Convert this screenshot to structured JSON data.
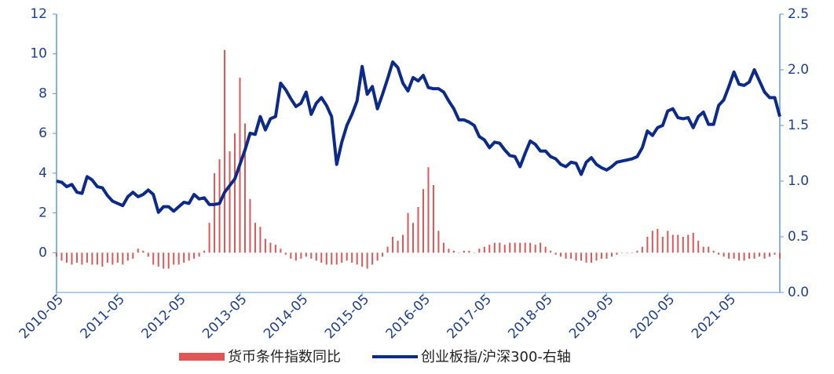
{
  "chart_data": {
    "type": "bar-line",
    "categories": [
      "2010-05",
      null,
      null,
      null,
      null,
      null,
      null,
      null,
      null,
      null,
      null,
      null,
      "2011-05",
      null,
      null,
      null,
      null,
      null,
      null,
      null,
      null,
      null,
      null,
      null,
      "2012-05",
      null,
      null,
      null,
      null,
      null,
      null,
      null,
      null,
      null,
      null,
      null,
      "2013-05",
      null,
      null,
      null,
      null,
      null,
      null,
      null,
      null,
      null,
      null,
      null,
      "2014-05",
      null,
      null,
      null,
      null,
      null,
      null,
      null,
      null,
      null,
      null,
      null,
      "2015-05",
      null,
      null,
      null,
      null,
      null,
      null,
      null,
      null,
      null,
      null,
      null,
      "2016-05",
      null,
      null,
      null,
      null,
      null,
      null,
      null,
      null,
      null,
      null,
      null,
      "2017-05",
      null,
      null,
      null,
      null,
      null,
      null,
      null,
      null,
      null,
      null,
      null,
      "2018-05",
      null,
      null,
      null,
      null,
      null,
      null,
      null,
      null,
      null,
      null,
      null,
      "2019-05",
      null,
      null,
      null,
      null,
      null,
      null,
      null,
      null,
      null,
      null,
      null,
      "2020-05",
      null,
      null,
      null,
      null,
      null,
      null,
      null,
      null,
      null,
      null,
      null,
      "2021-05",
      null,
      null,
      null,
      null,
      null,
      null,
      null,
      null,
      null,
      null
    ],
    "series": [
      {
        "name": "货币条件指数同比",
        "type": "bar",
        "color": "#e05555",
        "values": [
          -0.2,
          -0.4,
          -0.5,
          -0.6,
          -0.5,
          -0.6,
          -0.5,
          -0.6,
          -0.6,
          -0.7,
          -0.5,
          -0.6,
          -0.5,
          -0.6,
          -0.4,
          -0.3,
          0.2,
          0.1,
          -0.2,
          -0.6,
          -0.7,
          -0.8,
          -0.8,
          -0.6,
          -0.6,
          -0.5,
          -0.4,
          -0.3,
          -0.2,
          0.1,
          1.5,
          4.0,
          4.7,
          10.2,
          5.1,
          6.0,
          8.8,
          6.5,
          2.7,
          1.5,
          1.3,
          0.7,
          0.5,
          0.4,
          0.2,
          -0.1,
          -0.3,
          -0.4,
          -0.3,
          -0.2,
          -0.3,
          -0.4,
          -0.5,
          -0.6,
          -0.6,
          -0.6,
          -0.5,
          -0.4,
          -0.5,
          -0.6,
          -0.7,
          -0.8,
          -0.6,
          -0.4,
          -0.2,
          0.3,
          0.8,
          0.6,
          0.9,
          2.0,
          1.5,
          2.3,
          3.2,
          4.3,
          3.4,
          1.1,
          0.5,
          0.2,
          0.1,
          0.0,
          0.1,
          0.1,
          0.0,
          0.2,
          0.3,
          0.4,
          0.5,
          0.5,
          0.4,
          0.5,
          0.5,
          0.5,
          0.5,
          0.5,
          0.4,
          0.5,
          0.3,
          0.1,
          -0.1,
          -0.2,
          -0.3,
          -0.3,
          -0.4,
          -0.4,
          -0.5,
          -0.5,
          -0.4,
          -0.3,
          -0.3,
          -0.2,
          -0.1,
          0.0,
          0.0,
          0.0,
          0.1,
          0.3,
          0.8,
          1.1,
          1.2,
          0.8,
          1.1,
          0.9,
          0.9,
          0.8,
          0.9,
          1.0,
          0.6,
          0.3,
          0.3,
          0.1,
          -0.1,
          -0.2,
          -0.3,
          -0.3,
          -0.4,
          -0.4,
          -0.3,
          -0.3,
          -0.2,
          -0.3,
          -0.2,
          -0.1,
          -0.3
        ]
      },
      {
        "name": "创业板指/沪深300-右轴",
        "type": "line",
        "axis": "y2",
        "color": "#0c2a8a",
        "values": [
          1.0,
          0.99,
          0.95,
          0.97,
          0.9,
          0.89,
          1.04,
          1.01,
          0.95,
          0.94,
          0.87,
          0.82,
          0.8,
          0.78,
          0.86,
          0.9,
          0.86,
          0.88,
          0.92,
          0.88,
          0.72,
          0.77,
          0.77,
          0.73,
          0.77,
          0.81,
          0.8,
          0.88,
          0.84,
          0.85,
          0.79,
          0.79,
          0.8,
          0.9,
          0.96,
          1.02,
          1.15,
          1.28,
          1.43,
          1.42,
          1.58,
          1.46,
          1.56,
          1.58,
          1.88,
          1.82,
          1.74,
          1.67,
          1.7,
          1.8,
          1.6,
          1.7,
          1.75,
          1.68,
          1.58,
          1.15,
          1.35,
          1.5,
          1.6,
          1.72,
          2.03,
          1.78,
          1.85,
          1.65,
          1.78,
          1.92,
          2.07,
          2.02,
          1.88,
          1.81,
          1.93,
          1.9,
          1.95,
          1.84,
          1.83,
          1.83,
          1.8,
          1.72,
          1.65,
          1.55,
          1.55,
          1.53,
          1.5,
          1.4,
          1.37,
          1.3,
          1.35,
          1.34,
          1.28,
          1.23,
          1.22,
          1.13,
          1.25,
          1.36,
          1.33,
          1.27,
          1.27,
          1.22,
          1.2,
          1.15,
          1.13,
          1.17,
          1.16,
          1.06,
          1.17,
          1.21,
          1.15,
          1.12,
          1.1,
          1.13,
          1.17,
          1.18,
          1.19,
          1.2,
          1.22,
          1.3,
          1.45,
          1.41,
          1.48,
          1.5,
          1.63,
          1.65,
          1.57,
          1.56,
          1.57,
          1.48,
          1.58,
          1.62,
          1.51,
          1.51,
          1.68,
          1.73,
          1.85,
          1.98,
          1.87,
          1.86,
          1.89,
          2.0,
          1.9,
          1.8,
          1.75,
          1.75,
          1.58
        ]
      }
    ],
    "ylim": [
      -2,
      12
    ],
    "yticks": [
      0,
      2,
      4,
      6,
      8,
      10,
      12
    ],
    "y2lim": [
      0,
      2.5
    ],
    "y2ticks": [
      {
        "value": 0,
        "label": "0.0"
      },
      0.5,
      {
        "value": 1,
        "label": "1.0"
      },
      1.5,
      {
        "value": 2,
        "label": "2.0"
      },
      2.5
    ],
    "legend": "bottom"
  }
}
